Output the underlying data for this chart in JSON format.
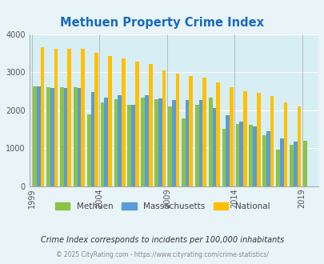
{
  "title": "Methuen Property Crime Index",
  "title_color": "#1a6abd",
  "subtitle": "Crime Index corresponds to incidents per 100,000 inhabitants",
  "footer": "© 2025 CityRating.com - https://www.cityrating.com/crime-statistics/",
  "years": [
    2000,
    2001,
    2002,
    2003,
    2004,
    2005,
    2006,
    2007,
    2008,
    2009,
    2010,
    2011,
    2012,
    2013,
    2014,
    2015,
    2016,
    2017,
    2018,
    2019,
    2020
  ],
  "methuen": [
    2620,
    2600,
    2600,
    2600,
    1880,
    2200,
    2280,
    2140,
    2330,
    2280,
    2100,
    1790,
    2140,
    2340,
    1520,
    1640,
    1620,
    1340,
    970,
    1090,
    1190
  ],
  "massachusetts": [
    2620,
    2590,
    2590,
    2590,
    2480,
    2330,
    2390,
    2150,
    2390,
    2310,
    2270,
    2260,
    2270,
    2050,
    1860,
    1700,
    1570,
    1440,
    1260,
    1170,
    null
  ],
  "national": [
    3660,
    3620,
    3610,
    3610,
    3510,
    3420,
    3360,
    3280,
    3220,
    3040,
    2960,
    2910,
    2870,
    2740,
    2600,
    2510,
    2460,
    2370,
    2200,
    2100,
    null
  ],
  "bar_width": 0.28,
  "ylim": [
    0,
    4000
  ],
  "yticks": [
    0,
    1000,
    2000,
    3000,
    4000
  ],
  "xtick_labels": [
    "1999",
    "2004",
    "2009",
    "2014",
    "2019"
  ],
  "xtick_positions": [
    -0.5,
    4.5,
    9.5,
    14.5,
    19.5
  ],
  "colors": {
    "methuen": "#8bc34a",
    "massachusetts": "#5b9bd5",
    "national": "#ffc000"
  },
  "bg_color": "#e8f4f8",
  "plot_bg": "#d8eef5",
  "grid_color": "#ffffff"
}
